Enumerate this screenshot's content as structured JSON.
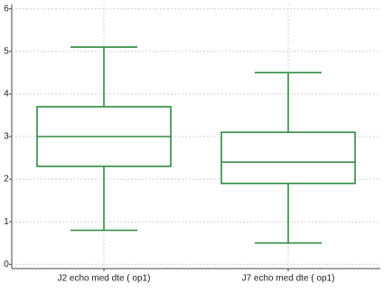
{
  "chart_data": {
    "type": "box",
    "categories": [
      "J2 echo med dte ( op1)",
      "J7 echo med dte ( op1)"
    ],
    "boxes": [
      {
        "whisker_low": 0.8,
        "q1": 2.3,
        "median": 3.0,
        "q3": 3.7,
        "whisker_high": 5.1
      },
      {
        "whisker_low": 0.5,
        "q1": 1.9,
        "median": 2.4,
        "q3": 3.1,
        "whisker_high": 4.5
      }
    ],
    "color": "#2e8b3e",
    "ylim": [
      -0.1,
      6.1
    ],
    "yticks": [
      0,
      1,
      2,
      3,
      4,
      5,
      6
    ],
    "grid": true
  }
}
